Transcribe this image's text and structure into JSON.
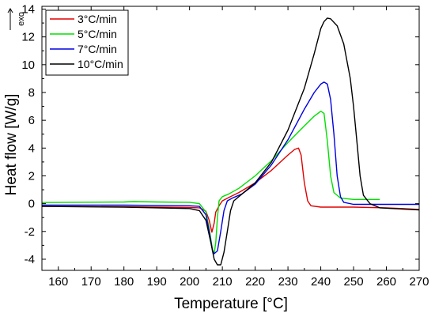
{
  "chart_data": {
    "type": "line",
    "title": "",
    "xlabel": "Temperature [°C]",
    "ylabel": "Heat flow [W/g]",
    "exo_label": "exo",
    "xlim": [
      155,
      270
    ],
    "ylim": [
      -4.8,
      14.2
    ],
    "x_ticks": [
      160,
      170,
      180,
      190,
      200,
      210,
      220,
      230,
      240,
      250,
      260,
      270
    ],
    "y_ticks": [
      -4,
      -2,
      0,
      2,
      4,
      6,
      8,
      10,
      12,
      14
    ],
    "grid": false,
    "legend_position": "top-left",
    "series": [
      {
        "name": "3°C/min",
        "color": "#e00000",
        "points": [
          [
            155,
            -0.2
          ],
          [
            180,
            -0.22
          ],
          [
            200,
            -0.27
          ],
          [
            203,
            -0.3
          ],
          [
            205,
            -0.55
          ],
          [
            206,
            -1.2
          ],
          [
            206.8,
            -2.05
          ],
          [
            207.5,
            -1.4
          ],
          [
            208,
            -0.6
          ],
          [
            209,
            -0.15
          ],
          [
            210,
            0.2
          ],
          [
            212,
            0.45
          ],
          [
            215,
            0.8
          ],
          [
            220,
            1.5
          ],
          [
            225,
            2.4
          ],
          [
            230,
            3.5
          ],
          [
            232,
            3.9
          ],
          [
            233.2,
            4.0
          ],
          [
            234,
            3.5
          ],
          [
            235,
            1.5
          ],
          [
            236,
            0.2
          ],
          [
            237,
            -0.15
          ],
          [
            240,
            -0.25
          ],
          [
            250,
            -0.25
          ],
          [
            260,
            -0.3
          ],
          [
            265,
            -0.35
          ],
          [
            270,
            -0.42
          ]
        ]
      },
      {
        "name": "5°C/min",
        "color": "#00e000",
        "points": [
          [
            155,
            0.08
          ],
          [
            180,
            0.12
          ],
          [
            183,
            0.15
          ],
          [
            190,
            0.12
          ],
          [
            200,
            0.1
          ],
          [
            203,
            0.0
          ],
          [
            205,
            -0.6
          ],
          [
            206,
            -1.8
          ],
          [
            207,
            -3.3
          ],
          [
            207.5,
            -3.6
          ],
          [
            208,
            -2.8
          ],
          [
            208.5,
            -1.0
          ],
          [
            209,
            0.2
          ],
          [
            210,
            0.5
          ],
          [
            212,
            0.7
          ],
          [
            215,
            1.1
          ],
          [
            220,
            2.0
          ],
          [
            225,
            3.1
          ],
          [
            230,
            4.4
          ],
          [
            235,
            5.6
          ],
          [
            238,
            6.3
          ],
          [
            240,
            6.65
          ],
          [
            241,
            6.5
          ],
          [
            242,
            4.5
          ],
          [
            243,
            2.0
          ],
          [
            244,
            0.8
          ],
          [
            246,
            0.4
          ],
          [
            250,
            0.3
          ],
          [
            255,
            0.3
          ],
          [
            258,
            0.3
          ]
        ]
      },
      {
        "name": "7°C/min",
        "color": "#0000e0",
        "points": [
          [
            155,
            -0.1
          ],
          [
            180,
            -0.1
          ],
          [
            200,
            -0.15
          ],
          [
            203,
            -0.2
          ],
          [
            205,
            -0.8
          ],
          [
            206,
            -2.0
          ],
          [
            207,
            -3.4
          ],
          [
            207.5,
            -3.6
          ],
          [
            208.5,
            -3.4
          ],
          [
            209.5,
            -2.0
          ],
          [
            210.5,
            -0.5
          ],
          [
            211.5,
            0.2
          ],
          [
            213,
            0.4
          ],
          [
            216,
            0.7
          ],
          [
            220,
            1.4
          ],
          [
            225,
            2.8
          ],
          [
            230,
            4.6
          ],
          [
            235,
            6.8
          ],
          [
            238,
            8.0
          ],
          [
            240,
            8.6
          ],
          [
            241,
            8.75
          ],
          [
            242,
            8.6
          ],
          [
            243,
            7.5
          ],
          [
            244,
            5.0
          ],
          [
            245,
            2.0
          ],
          [
            246,
            0.5
          ],
          [
            247,
            0.1
          ],
          [
            250,
            -0.05
          ],
          [
            260,
            -0.05
          ],
          [
            270,
            -0.05
          ]
        ]
      },
      {
        "name": "10°C/min",
        "color": "#000000",
        "points": [
          [
            155,
            -0.2
          ],
          [
            180,
            -0.25
          ],
          [
            200,
            -0.35
          ],
          [
            203,
            -0.5
          ],
          [
            205,
            -1.2
          ],
          [
            206.5,
            -2.8
          ],
          [
            207.5,
            -4.0
          ],
          [
            208.5,
            -4.4
          ],
          [
            209.5,
            -4.4
          ],
          [
            210.5,
            -3.5
          ],
          [
            211.5,
            -2.0
          ],
          [
            212.5,
            -0.5
          ],
          [
            213.5,
            0.2
          ],
          [
            215,
            0.5
          ],
          [
            220,
            1.5
          ],
          [
            225,
            3.0
          ],
          [
            230,
            5.3
          ],
          [
            235,
            8.3
          ],
          [
            238,
            10.8
          ],
          [
            240,
            12.6
          ],
          [
            241,
            13.1
          ],
          [
            242,
            13.35
          ],
          [
            243,
            13.3
          ],
          [
            245,
            12.8
          ],
          [
            247,
            11.5
          ],
          [
            249,
            9.0
          ],
          [
            250,
            7.0
          ],
          [
            251,
            4.5
          ],
          [
            252,
            2.0
          ],
          [
            253,
            0.6
          ],
          [
            255,
            0.0
          ],
          [
            258,
            -0.3
          ],
          [
            262,
            -0.35
          ],
          [
            266,
            -0.4
          ],
          [
            270,
            -0.45
          ]
        ]
      }
    ]
  }
}
